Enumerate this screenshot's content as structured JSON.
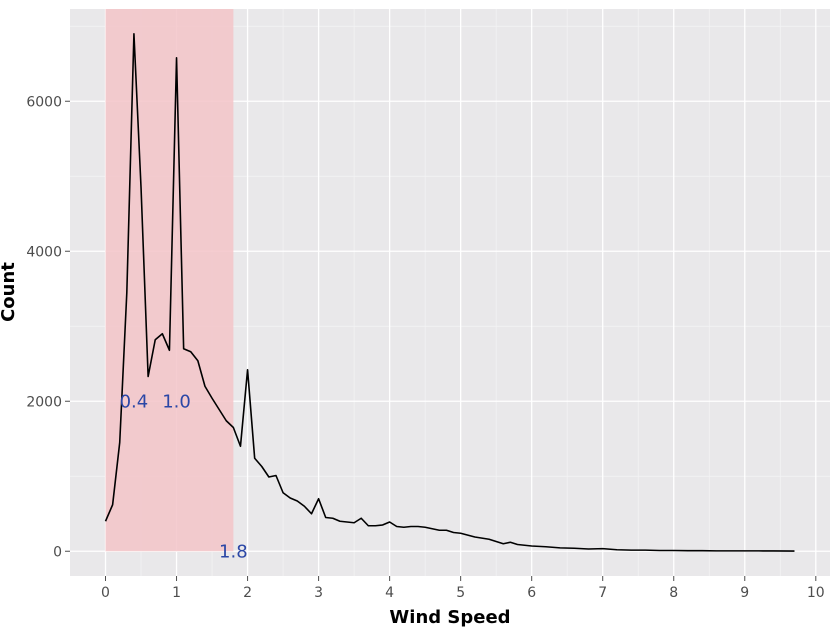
{
  "chart_data": {
    "type": "line",
    "xlabel": "Wind Speed",
    "ylabel": "Count",
    "xlim": [
      -0.5,
      10.2
    ],
    "ylim": [
      -330,
      7230
    ],
    "x_ticks": [
      0,
      1,
      2,
      3,
      4,
      5,
      6,
      7,
      8,
      9,
      10
    ],
    "y_ticks": [
      0,
      2000,
      4000,
      6000
    ],
    "grid": true,
    "highlight": {
      "x_from": 0,
      "x_to": 1.8,
      "color": "#f3c4c8"
    },
    "annotations": [
      {
        "text": "0.4",
        "x": 0.4,
        "y": 2000,
        "color": "#2b47a6"
      },
      {
        "text": "1.0",
        "x": 1.0,
        "y": 2000,
        "color": "#2b47a6"
      },
      {
        "text": "1.8",
        "x": 1.8,
        "y": 0,
        "color": "#2b47a6"
      }
    ],
    "series": [
      {
        "color": "#000000",
        "x": [
          0,
          0.1,
          0.2,
          0.3,
          0.4,
          0.5,
          0.6,
          0.7,
          0.8,
          0.9,
          1.0,
          1.1,
          1.2,
          1.3,
          1.4,
          1.5,
          1.6,
          1.7,
          1.8,
          1.9,
          2.0,
          2.1,
          2.2,
          2.3,
          2.4,
          2.5,
          2.6,
          2.7,
          2.8,
          2.9,
          3.0,
          3.1,
          3.2,
          3.3,
          3.4,
          3.5,
          3.6,
          3.7,
          3.8,
          3.9,
          4.0,
          4.1,
          4.2,
          4.3,
          4.4,
          4.5,
          4.6,
          4.7,
          4.8,
          4.9,
          5.0,
          5.2,
          5.4,
          5.5,
          5.6,
          5.7,
          5.8,
          5.9,
          6.0,
          6.2,
          6.4,
          6.6,
          6.8,
          7.0,
          7.2,
          7.4,
          7.6,
          7.8,
          8.0,
          8.2,
          8.4,
          8.6,
          8.8,
          9.0,
          9.2,
          9.4,
          9.7
        ],
        "y": [
          400,
          620,
          1450,
          3450,
          6900,
          4850,
          2330,
          2820,
          2900,
          2680,
          6580,
          2700,
          2660,
          2540,
          2200,
          2040,
          1890,
          1740,
          1650,
          1400,
          2420,
          1240,
          1130,
          990,
          1010,
          780,
          710,
          670,
          600,
          500,
          700,
          450,
          440,
          400,
          390,
          380,
          440,
          340,
          340,
          350,
          390,
          330,
          320,
          330,
          330,
          320,
          300,
          280,
          280,
          250,
          240,
          190,
          160,
          130,
          100,
          120,
          90,
          80,
          70,
          60,
          45,
          40,
          30,
          35,
          20,
          15,
          15,
          10,
          10,
          8,
          8,
          5,
          5,
          5,
          5,
          4,
          3
        ]
      }
    ]
  }
}
